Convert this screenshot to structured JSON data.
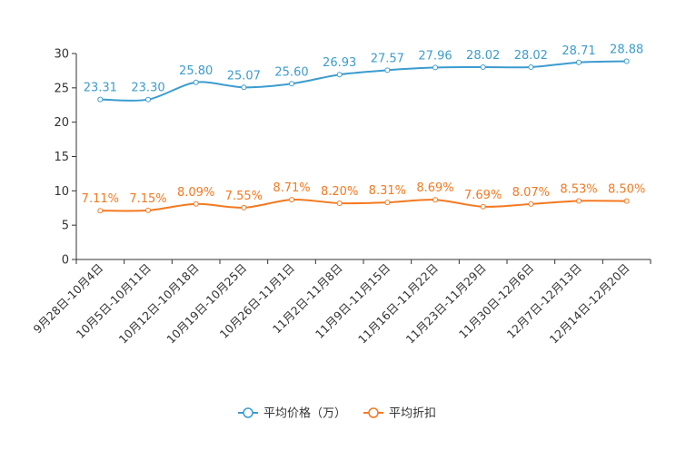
{
  "chart_data": {
    "type": "line",
    "title": "",
    "xlabel": "",
    "ylabel": "",
    "ylim": [
      0,
      30
    ],
    "yticks": [
      0,
      5,
      10,
      15,
      20,
      25,
      30
    ],
    "grid": false,
    "legend_position": "bottom-center",
    "categories": [
      "9月28日-10月4日",
      "10月5日-10月11日",
      "10月12日-10月18日",
      "10月19日-10月25日",
      "10月26日-11月1日",
      "11月2日-11月8日",
      "11月9日-11月15日",
      "11月16日-11月22日",
      "11月23日-11月29日",
      "11月30日-12月6日",
      "12月7日-12月13日",
      "12月14日-12月20日"
    ],
    "series": [
      {
        "name": "平均价格（万）",
        "color": "#3c9ccf",
        "values": [
          23.31,
          23.3,
          25.8,
          25.07,
          25.6,
          26.93,
          27.57,
          27.96,
          28.02,
          28.02,
          28.71,
          28.88
        ],
        "labels": [
          "23.31",
          "23.30",
          "25.80",
          "25.07",
          "25.60",
          "26.93",
          "27.57",
          "27.96",
          "28.02",
          "28.02",
          "28.71",
          "28.88"
        ]
      },
      {
        "name": "平均折扣",
        "color": "#f47920",
        "values": [
          7.11,
          7.15,
          8.09,
          7.55,
          8.71,
          8.2,
          8.31,
          8.69,
          7.69,
          8.07,
          8.53,
          8.5
        ],
        "labels": [
          "7.11%",
          "7.15%",
          "8.09%",
          "7.55%",
          "8.71%",
          "8.20%",
          "8.31%",
          "8.69%",
          "7.69%",
          "8.07%",
          "8.53%",
          "8.50%"
        ]
      }
    ]
  }
}
